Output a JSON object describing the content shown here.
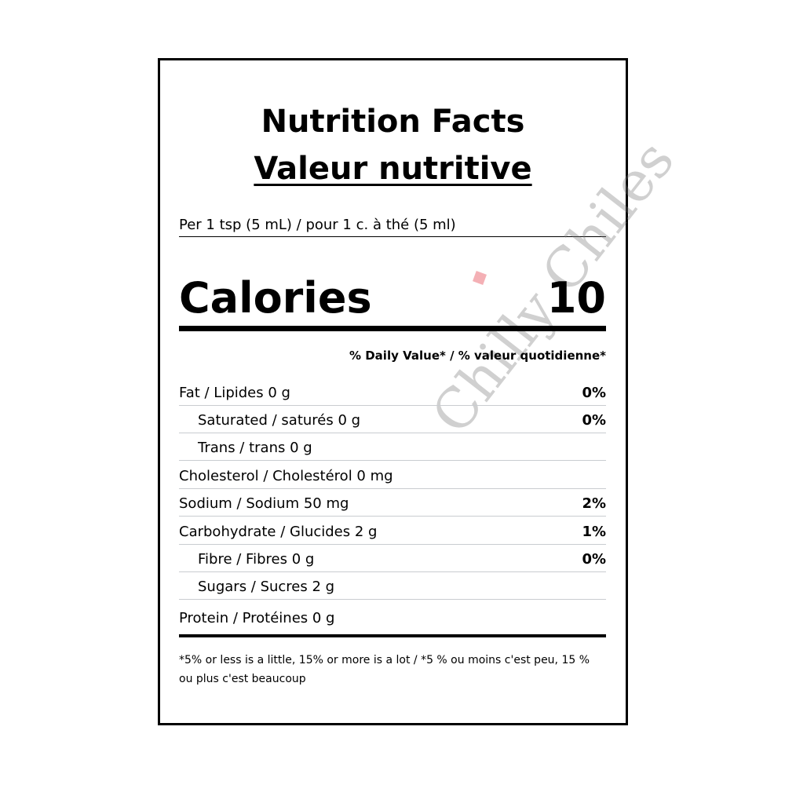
{
  "label": {
    "title_en": "Nutrition Facts",
    "title_fr": "Valeur nutritive",
    "serving": "Per 1 tsp (5 mL) / pour 1 c. à thé (5 ml)",
    "calories_label": "Calories",
    "calories_value": "10",
    "daily_value_header": "% Daily Value* / % valeur quotidienne*",
    "rows": [
      {
        "name": "Fat / Lipides 0 g",
        "percent": "0%"
      },
      {
        "name": "Saturated / saturés 0 g",
        "percent": "0%"
      },
      {
        "name": "Trans / trans 0 g",
        "percent": ""
      },
      {
        "name": "Cholesterol / Cholestérol 0 mg",
        "percent": ""
      },
      {
        "name": "Sodium / Sodium 50 mg",
        "percent": "2%"
      },
      {
        "name": "Carbohydrate / Glucides 2 g",
        "percent": "1%"
      },
      {
        "name": "Fibre / Fibres 0 g",
        "percent": "0%"
      },
      {
        "name": "Sugars / Sucres 2 g",
        "percent": ""
      },
      {
        "name": "Protein / Protéines 0 g",
        "percent": ""
      }
    ],
    "footnote": "*5% or less is a little, 15% or more is a lot / *5 % ou moins c'est peu, 15 % ou plus c'est beaucoup"
  },
  "watermark": {
    "text": "Chilly Chiles",
    "accent_color": "#e6505a"
  }
}
